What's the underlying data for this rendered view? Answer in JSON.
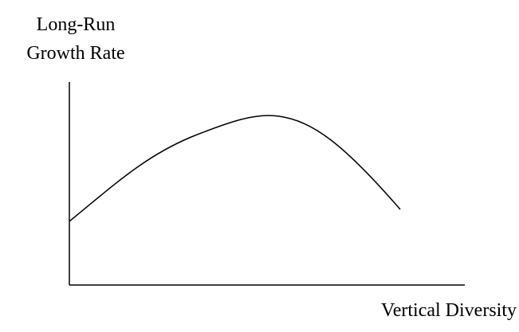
{
  "y_axis_label": {
    "lines": [
      "Long-Run",
      "Growth Rate"
    ]
  },
  "x_axis_label": "Vertical Diversity"
}
